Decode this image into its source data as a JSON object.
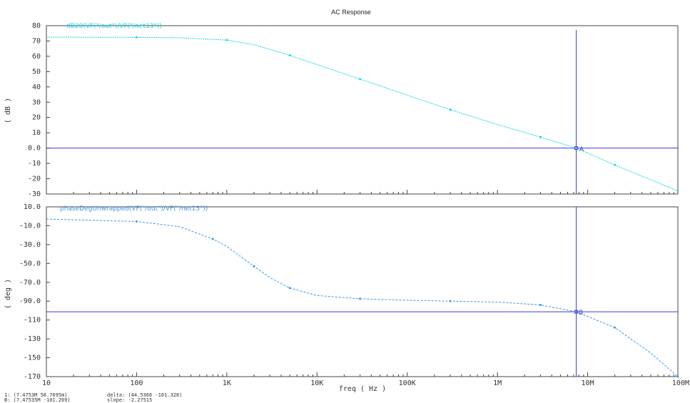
{
  "title": "AC Response",
  "colors": {
    "trace": "#19d9e6",
    "trace_phase": "#3d96e6",
    "marker_line": "#3b3bd9",
    "axes": "#444444"
  },
  "chart_data": [
    {
      "type": "line",
      "legend": "dB20(VF(\"/out\")/VF(\"/net13\"))",
      "ylabel": "( dB )",
      "xscale": "log",
      "xlim": [
        10,
        100000000
      ],
      "ylim": [
        -30,
        80
      ],
      "yticks": [
        "80",
        "70",
        "60",
        "50",
        "40",
        "30",
        "20",
        "10",
        "0.0",
        "-10",
        "-20",
        "-30"
      ],
      "ytick_values": [
        80,
        70,
        60,
        50,
        40,
        30,
        20,
        10,
        0,
        -10,
        -20,
        -30
      ],
      "series": [
        {
          "name": "dB20(VF(\"/out\")/VF(\"/net13\"))",
          "x": [
            10,
            100,
            300,
            1000,
            2000,
            5000,
            10000,
            30000,
            100000,
            300000,
            1000000,
            3000000,
            7475300,
            20000000,
            100000000
          ],
          "y": [
            72.5,
            72.4,
            72.1,
            70.6,
            67.6,
            60.6,
            54.6,
            45.1,
            34.6,
            25.1,
            15.4,
            7.2,
            0,
            -11,
            -28
          ]
        }
      ],
      "hline": 0,
      "vline": 7475300,
      "marker": "A"
    },
    {
      "type": "line",
      "legend": "phaseDegUnwrapped(VF(\"/out\")/VF(\"/net13\"))",
      "ylabel": "( deg )",
      "xlabel": "freq ( Hz )",
      "xscale": "log",
      "xlim": [
        10,
        100000000
      ],
      "ylim": [
        -170,
        10
      ],
      "yticks": [
        "10.0",
        "-10.0",
        "-30.0",
        "-50.0",
        "-70.0",
        "-90.0",
        "-110",
        "-130",
        "-150",
        "-170"
      ],
      "ytick_values": [
        10,
        -10,
        -30,
        -50,
        -70,
        -90,
        -110,
        -130,
        -150,
        -170
      ],
      "xticks": [
        "10",
        "100",
        "1K",
        "10K",
        "100K",
        "1M",
        "10M",
        "100M"
      ],
      "xtick_values": [
        10,
        100,
        1000,
        10000,
        100000,
        1000000,
        10000000,
        100000000
      ],
      "series": [
        {
          "name": "phaseDegUnwrapped(VF(\"/out\")/VF(\"/net13\"))",
          "x": [
            10,
            100,
            300,
            700,
            1000,
            2000,
            3000,
            5000,
            10000,
            30000,
            100000,
            300000,
            1000000,
            3000000,
            7475300,
            20000000,
            50000000,
            100000000
          ],
          "y": [
            -3,
            -5.5,
            -11,
            -24,
            -32,
            -53,
            -65,
            -76,
            -84,
            -87.5,
            -89,
            -90,
            -91,
            -94,
            -101.3,
            -118,
            -145,
            -170
          ]
        }
      ],
      "hline": -101.3,
      "vline": 7475300,
      "marker": "B"
    }
  ],
  "status": {
    "line1_left": "1: (7.4753M 58.7695m)",
    "line1_right": "delta: (44.5366 -101.328)",
    "line2_left": "B: (7.47535M -101.269)",
    "line2_right": "slope: -2.27515"
  }
}
